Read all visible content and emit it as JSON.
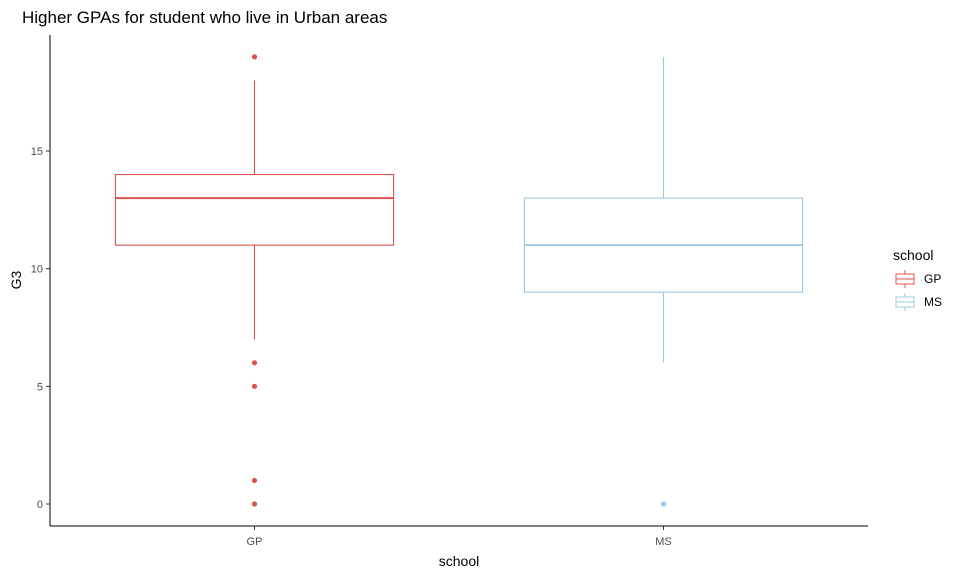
{
  "chart_data": {
    "type": "boxplot",
    "title": "Higher GPAs for student who live in Urban areas",
    "xlabel": "school",
    "ylabel": "G3",
    "categories": [
      "GP",
      "MS"
    ],
    "ylim": [
      -1,
      20
    ],
    "yticks": [
      0,
      5,
      10,
      15
    ],
    "yticks_labels": [
      "0",
      "5",
      "10",
      "15"
    ],
    "grid": false,
    "legend": {
      "title": "school",
      "placement": "right",
      "entries": [
        "GP",
        "MS"
      ]
    },
    "series": [
      {
        "name": "GP",
        "color": "#d9534f",
        "min": 7,
        "q1": 11,
        "median": 13,
        "q3": 14,
        "max": 18,
        "outliers": [
          19,
          6,
          5,
          1,
          0
        ]
      },
      {
        "name": "MS",
        "color": "#9ecae1",
        "min": 6,
        "q1": 9,
        "median": 11,
        "q3": 13,
        "max": 19,
        "outliers": [
          0
        ]
      }
    ]
  }
}
